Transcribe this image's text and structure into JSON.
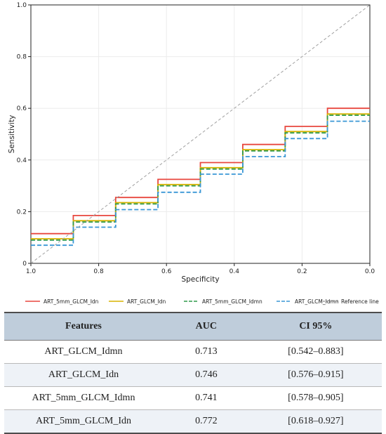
{
  "chart_data": {
    "type": "line",
    "xlabel": "Specificity",
    "ylabel": "Sensitivity",
    "xlim": [
      1.0,
      0.0
    ],
    "ylim": [
      0.0,
      1.0
    ],
    "x_reversed": true,
    "grid": true,
    "xticks": [
      "1.0",
      "0.8",
      "0.6",
      "0.4",
      "0.2",
      "0.0"
    ],
    "yticks": [
      "0",
      "0.2",
      "0.4",
      "0.6",
      "0.8",
      "1.0"
    ],
    "legend_position": "bottom",
    "series": [
      {
        "name": "ART_5mm_GLCM_Idn",
        "color": "#e8473e",
        "dash": "solid",
        "x": [
          1.0,
          0.875,
          0.875,
          0.75,
          0.75,
          0.625,
          0.625,
          0.5,
          0.5,
          0.375,
          0.375,
          0.25,
          0.25,
          0.125,
          0.125,
          0.0
        ],
        "y": [
          0.115,
          0.115,
          0.185,
          0.185,
          0.255,
          0.255,
          0.325,
          0.325,
          0.39,
          0.39,
          0.46,
          0.46,
          0.53,
          0.53,
          0.6,
          0.6
        ]
      },
      {
        "name": "ART_GLCM_Idn",
        "color": "#d8b400",
        "dash": "solid",
        "x": [
          1.0,
          0.875,
          0.875,
          0.75,
          0.75,
          0.625,
          0.625,
          0.5,
          0.5,
          0.375,
          0.375,
          0.25,
          0.25,
          0.125,
          0.125,
          0.0
        ],
        "y": [
          0.095,
          0.095,
          0.165,
          0.165,
          0.235,
          0.235,
          0.305,
          0.305,
          0.37,
          0.37,
          0.44,
          0.44,
          0.51,
          0.51,
          0.578,
          0.578
        ]
      },
      {
        "name": "ART_5mm_GLCM_Idmn",
        "color": "#2e9a4a",
        "dash": "dashed",
        "x": [
          1.0,
          0.875,
          0.875,
          0.75,
          0.75,
          0.625,
          0.625,
          0.5,
          0.5,
          0.375,
          0.375,
          0.25,
          0.25,
          0.125,
          0.125,
          0.0
        ],
        "y": [
          0.09,
          0.09,
          0.16,
          0.16,
          0.23,
          0.23,
          0.3,
          0.3,
          0.365,
          0.365,
          0.435,
          0.435,
          0.505,
          0.505,
          0.573,
          0.573
        ]
      },
      {
        "name": "ART_GLCM_Idmn",
        "color": "#3a97d6",
        "dash": "dashed",
        "x": [
          1.0,
          0.875,
          0.875,
          0.75,
          0.75,
          0.625,
          0.625,
          0.5,
          0.5,
          0.375,
          0.375,
          0.25,
          0.25,
          0.125,
          0.125,
          0.0
        ],
        "y": [
          0.07,
          0.07,
          0.14,
          0.14,
          0.208,
          0.208,
          0.275,
          0.275,
          0.345,
          0.345,
          0.413,
          0.413,
          0.483,
          0.483,
          0.55,
          0.55
        ]
      },
      {
        "name": "Reference line",
        "color": "#a0a0a0",
        "dash": "dashed",
        "x": [
          1.0,
          0.0
        ],
        "y": [
          0.0,
          1.0
        ]
      }
    ]
  },
  "table": {
    "headers": [
      "Features",
      "AUC",
      "CI 95%"
    ],
    "rows": [
      [
        "ART_GLCM_Idmn",
        "0.713",
        "[0.542–0.883]"
      ],
      [
        "ART_GLCM_Idn",
        "0.746",
        "[0.576–0.915]"
      ],
      [
        "ART_5mm_GLCM_Idmn",
        "0.741",
        "[0.578–0.905]"
      ],
      [
        "ART_5mm_GLCM_Idn",
        "0.772",
        "[0.618–0.927]"
      ]
    ]
  }
}
